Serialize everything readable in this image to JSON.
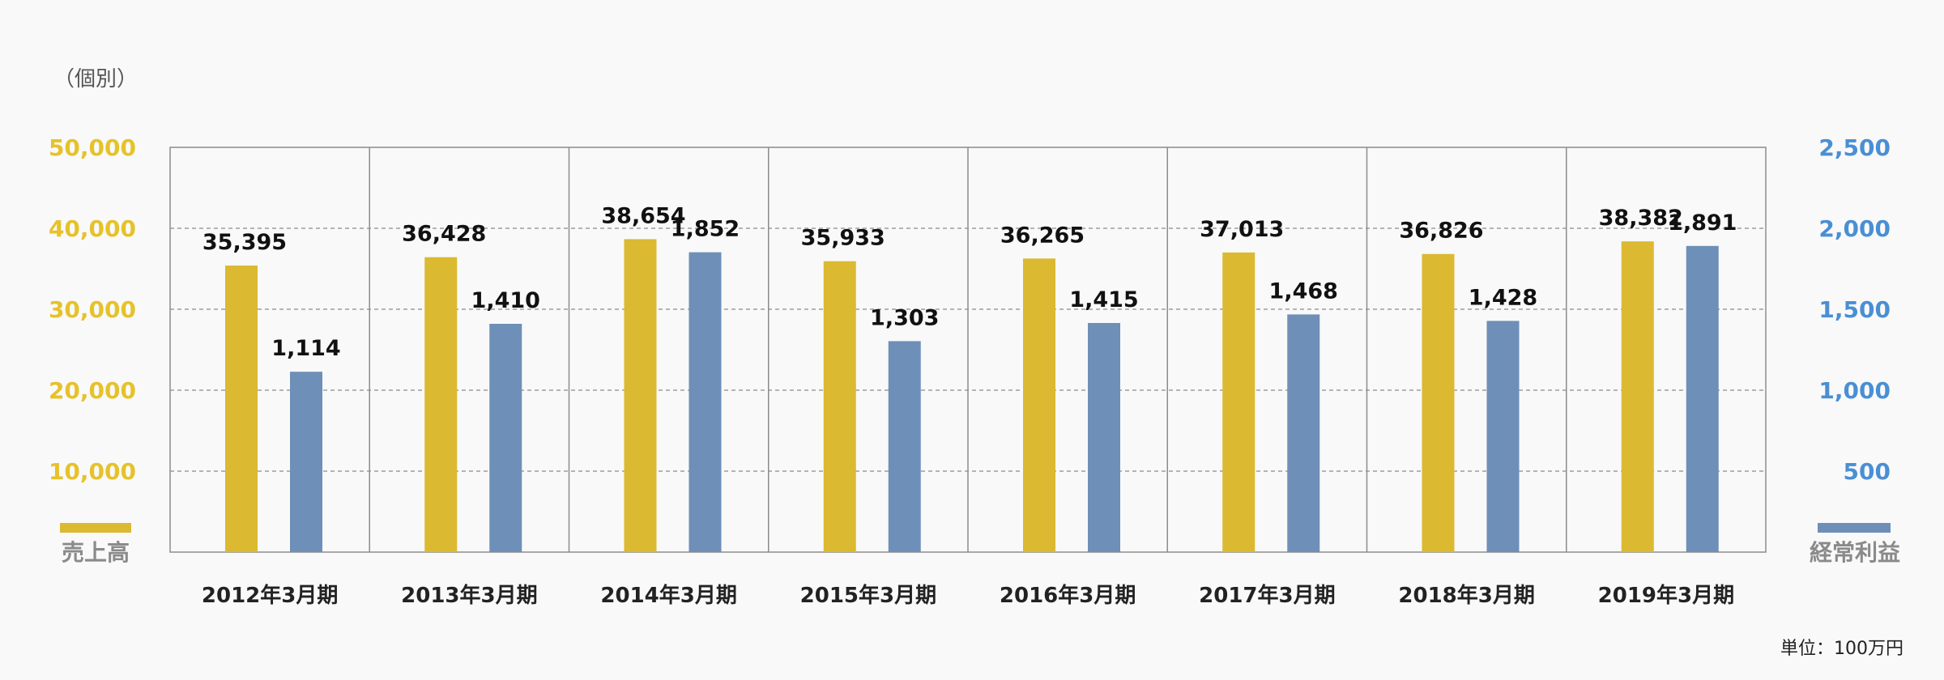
{
  "header": {
    "scope_note": "（個別）"
  },
  "footer": {
    "unit_note": "単位：100万円"
  },
  "legend": {
    "left_series": "売上高",
    "right_series": "経常利益"
  },
  "colors": {
    "sales": "#dbb931",
    "profit": "#6e8fb8",
    "left_axis": "#e6c22a",
    "right_axis": "#4a8fd4"
  },
  "chart_data": {
    "type": "bar",
    "categories": [
      "2012年3月期",
      "2013年3月期",
      "2014年3月期",
      "2015年3月期",
      "2016年3月期",
      "2017年3月期",
      "2018年3月期",
      "2019年3月期"
    ],
    "series": [
      {
        "name": "売上高",
        "axis": "left",
        "values": [
          35395,
          36428,
          38654,
          35933,
          36265,
          37013,
          36826,
          38382
        ],
        "labels": [
          "35,395",
          "36,428",
          "38,654",
          "35,933",
          "36,265",
          "37,013",
          "36,826",
          "38,382"
        ]
      },
      {
        "name": "経常利益",
        "axis": "right",
        "values": [
          1114,
          1410,
          1852,
          1303,
          1415,
          1468,
          1428,
          1891
        ],
        "labels": [
          "1,114",
          "1,410",
          "1,852",
          "1,303",
          "1,415",
          "1,468",
          "1,428",
          "1,891"
        ]
      }
    ],
    "left_axis": {
      "ylim": [
        0,
        50000
      ],
      "ticks": [
        10000,
        20000,
        30000,
        40000,
        50000
      ],
      "tick_labels": [
        "10,000",
        "20,000",
        "30,000",
        "40,000",
        "50,000"
      ]
    },
    "right_axis": {
      "ylim": [
        0,
        2500
      ],
      "ticks": [
        500,
        1000,
        1500,
        2000,
        2500
      ],
      "tick_labels": [
        "500",
        "1,000",
        "1,500",
        "2,000",
        "2,500"
      ]
    },
    "grid": "dashed horizontal",
    "legend_position": "bottom-corners"
  }
}
